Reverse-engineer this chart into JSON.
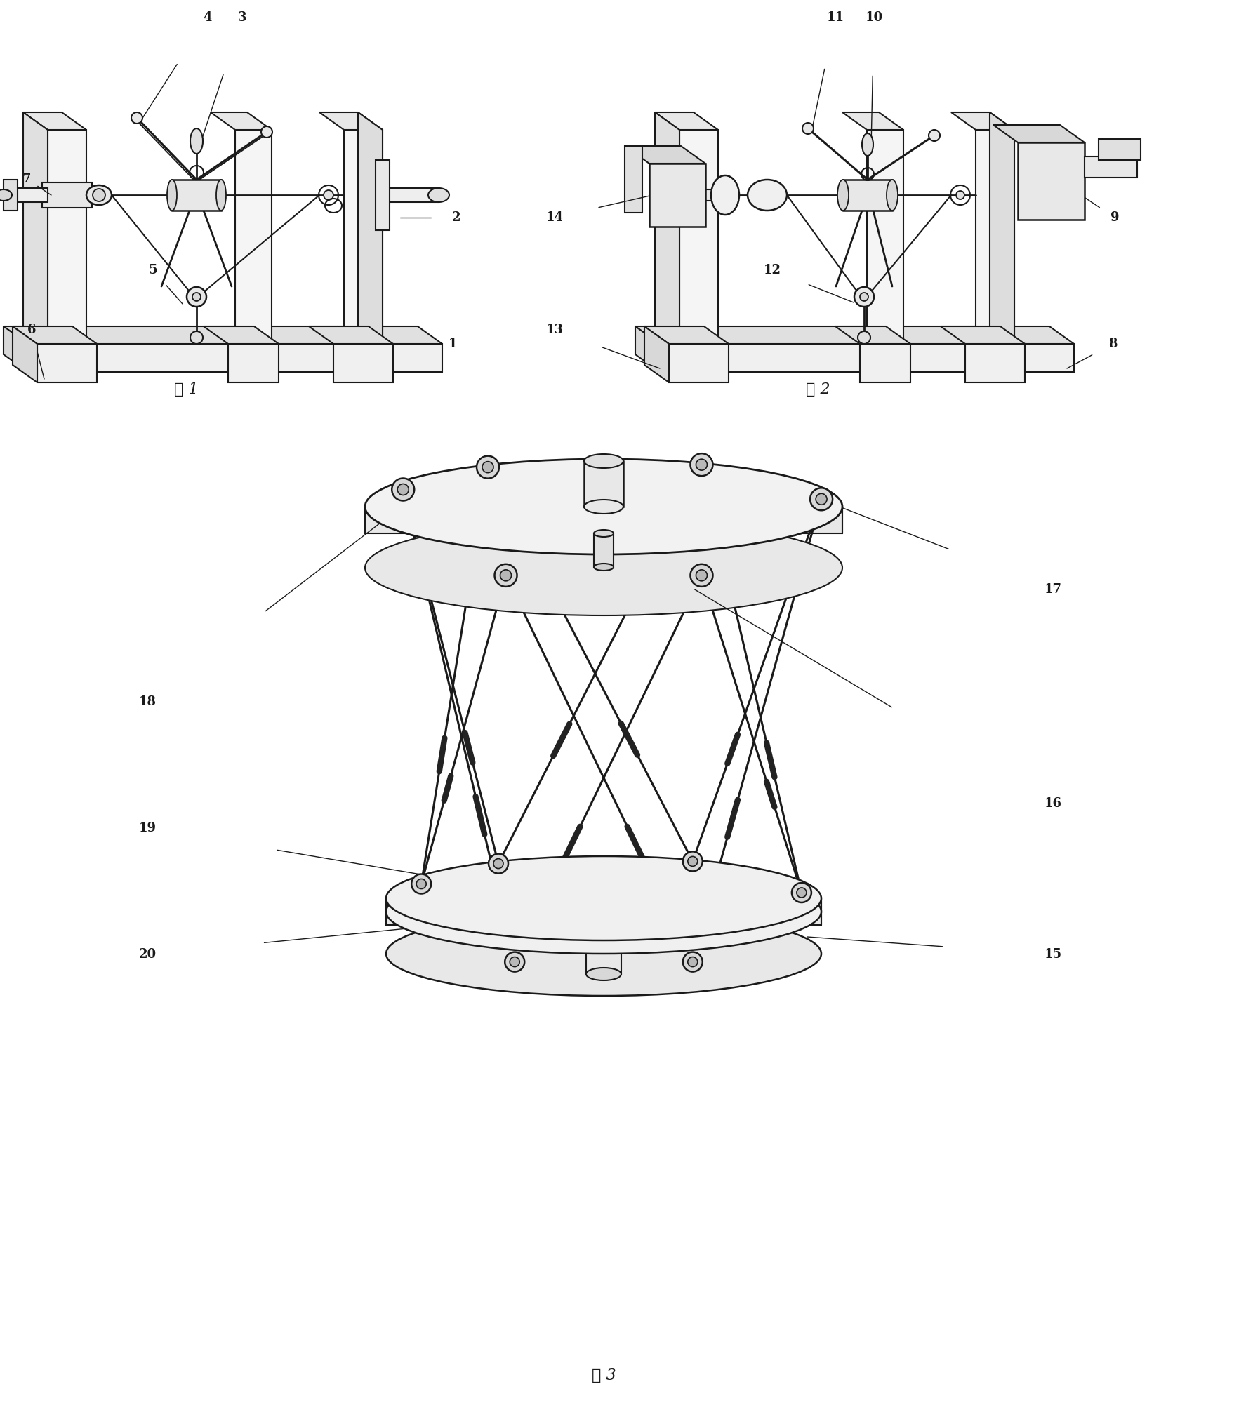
{
  "bg_color": "#ffffff",
  "lc": "#1a1a1a",
  "fig1_caption": "图 1",
  "fig2_caption": "图 2",
  "fig3_caption": "图 3",
  "fig_w": 17.95,
  "fig_h": 20.22,
  "dpi": 100
}
